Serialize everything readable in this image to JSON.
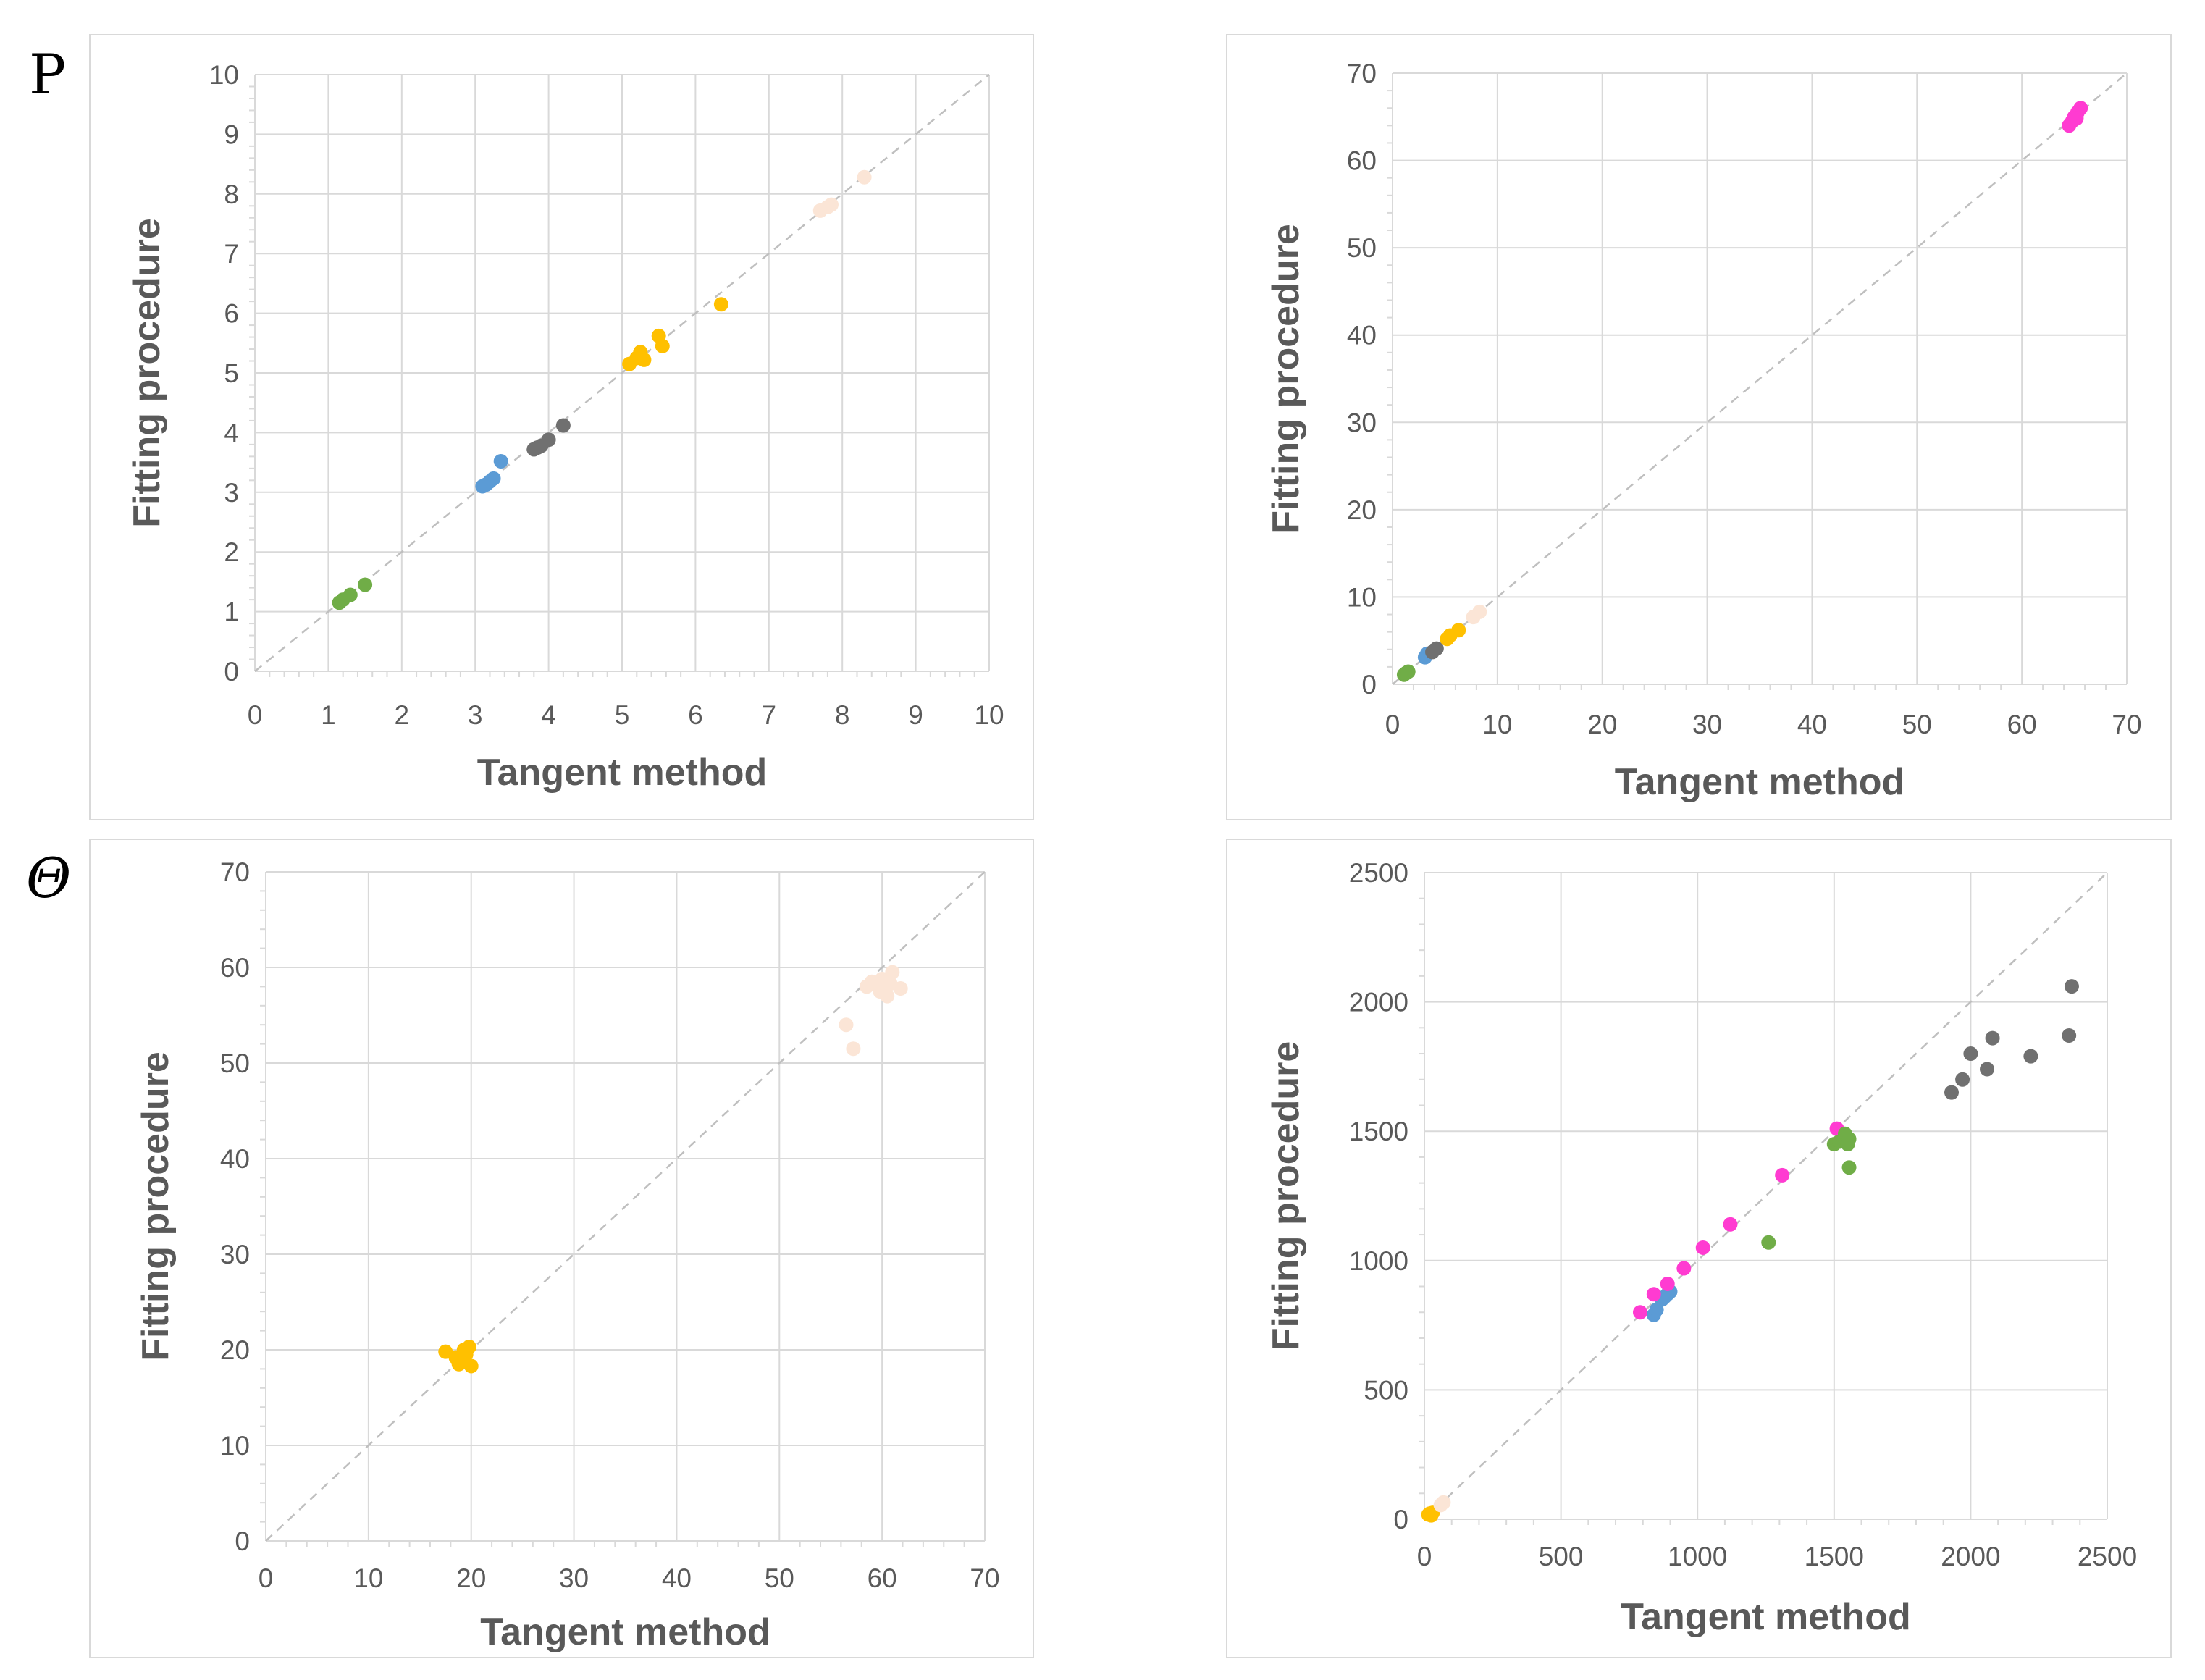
{
  "row_labels": {
    "top": "P",
    "bottom": "Θ"
  },
  "colors": {
    "green": "#70ad47",
    "blue": "#5b9bd5",
    "gray": "#707070",
    "orange": "#ffc000",
    "peach": "#fbe5d6",
    "pink": "#ff3bd1",
    "grid": "#d9d9d9",
    "diagonal": "#bfbfbf"
  },
  "chart_data": [
    {
      "id": "chart-1",
      "type": "scatter",
      "xlabel": "Tangent method",
      "ylabel": "Fitting procedure",
      "xlim": [
        0,
        10
      ],
      "ylim": [
        0,
        10
      ],
      "xticks": [
        0,
        1,
        2,
        3,
        4,
        5,
        6,
        7,
        8,
        9,
        10
      ],
      "yticks": [
        0,
        1,
        2,
        3,
        4,
        5,
        6,
        7,
        8,
        9,
        10
      ],
      "xtick_labels": [
        "0",
        "1",
        "2",
        "3",
        "4",
        "5",
        "6",
        "7",
        "8",
        "9",
        "10"
      ],
      "ytick_labels": [
        "0",
        "1",
        "2",
        "3",
        "4",
        "5",
        "6",
        "7",
        "8",
        "9",
        "10"
      ],
      "diagonal": true,
      "series": [
        {
          "color": "green",
          "points": [
            [
              1.15,
              1.15
            ],
            [
              1.2,
              1.2
            ],
            [
              1.3,
              1.28
            ],
            [
              1.5,
              1.45
            ]
          ]
        },
        {
          "color": "blue",
          "points": [
            [
              3.1,
              3.1
            ],
            [
              3.15,
              3.13
            ],
            [
              3.2,
              3.18
            ],
            [
              3.25,
              3.23
            ],
            [
              3.35,
              3.52
            ]
          ]
        },
        {
          "color": "gray",
          "points": [
            [
              3.8,
              3.72
            ],
            [
              3.85,
              3.75
            ],
            [
              3.9,
              3.78
            ],
            [
              4.0,
              3.88
            ],
            [
              4.2,
              4.12
            ]
          ]
        },
        {
          "color": "orange",
          "points": [
            [
              5.1,
              5.15
            ],
            [
              5.2,
              5.25
            ],
            [
              5.25,
              5.35
            ],
            [
              5.3,
              5.22
            ],
            [
              5.5,
              5.62
            ],
            [
              5.55,
              5.45
            ],
            [
              6.35,
              6.15
            ]
          ]
        },
        {
          "color": "peach",
          "points": [
            [
              7.7,
              7.72
            ],
            [
              7.8,
              7.78
            ],
            [
              7.85,
              7.82
            ],
            [
              8.3,
              8.28
            ]
          ]
        }
      ]
    },
    {
      "id": "chart-2",
      "type": "scatter",
      "xlabel": "Tangent method",
      "ylabel": "Fitting procedure",
      "xlim": [
        0,
        70
      ],
      "ylim": [
        0,
        70
      ],
      "xticks": [
        0,
        10,
        20,
        30,
        40,
        50,
        60,
        70
      ],
      "yticks": [
        0,
        10,
        20,
        30,
        40,
        50,
        60,
        70
      ],
      "xtick_labels": [
        "0",
        "10",
        "20",
        "30",
        "40",
        "50",
        "60",
        "70"
      ],
      "ytick_labels": [
        "0",
        "10",
        "20",
        "30",
        "40",
        "50",
        "60",
        "70"
      ],
      "diagonal": true,
      "series": [
        {
          "color": "green",
          "points": [
            [
              1.1,
              1.1
            ],
            [
              1.3,
              1.3
            ],
            [
              1.5,
              1.45
            ]
          ]
        },
        {
          "color": "blue",
          "points": [
            [
              3.1,
              3.1
            ],
            [
              3.3,
              3.5
            ]
          ]
        },
        {
          "color": "gray",
          "points": [
            [
              3.8,
              3.7
            ],
            [
              4.2,
              4.1
            ]
          ]
        },
        {
          "color": "orange",
          "points": [
            [
              5.2,
              5.2
            ],
            [
              5.5,
              5.6
            ],
            [
              6.3,
              6.2
            ]
          ]
        },
        {
          "color": "peach",
          "points": [
            [
              7.7,
              7.7
            ],
            [
              8.3,
              8.3
            ]
          ]
        },
        {
          "color": "pink",
          "points": [
            [
              64.5,
              64.0
            ],
            [
              64.8,
              64.5
            ],
            [
              65.0,
              65.0
            ],
            [
              65.3,
              65.5
            ],
            [
              65.6,
              66.0
            ],
            [
              65.2,
              64.8
            ]
          ]
        }
      ]
    },
    {
      "id": "chart-3",
      "type": "scatter",
      "xlabel": "Tangent method",
      "ylabel": "Fitting procedure",
      "xlim": [
        0,
        70
      ],
      "ylim": [
        0,
        70
      ],
      "xticks": [
        0,
        10,
        20,
        30,
        40,
        50,
        60,
        70
      ],
      "yticks": [
        0,
        10,
        20,
        30,
        40,
        50,
        60,
        70
      ],
      "xtick_labels": [
        "0",
        "10",
        "20",
        "30",
        "40",
        "50",
        "60",
        "70"
      ],
      "ytick_labels": [
        "0",
        "10",
        "20",
        "30",
        "40",
        "50",
        "60",
        "70"
      ],
      "diagonal": true,
      "series": [
        {
          "color": "orange",
          "points": [
            [
              17.5,
              19.8
            ],
            [
              18.5,
              19.2
            ],
            [
              19.0,
              18.8
            ],
            [
              19.3,
              20.0
            ],
            [
              19.5,
              19.5
            ],
            [
              19.8,
              20.3
            ],
            [
              20.0,
              18.3
            ],
            [
              18.8,
              18.5
            ]
          ]
        },
        {
          "color": "peach",
          "points": [
            [
              56.5,
              54.0
            ],
            [
              57.2,
              51.5
            ],
            [
              58.5,
              58.0
            ],
            [
              59.0,
              58.5
            ],
            [
              60.0,
              58.8
            ],
            [
              60.5,
              57.0
            ],
            [
              61.0,
              59.5
            ],
            [
              61.8,
              57.8
            ],
            [
              60.8,
              58.3
            ],
            [
              59.8,
              57.5
            ]
          ]
        }
      ]
    },
    {
      "id": "chart-4",
      "type": "scatter",
      "xlabel": "Tangent method",
      "ylabel": "Fitting procedure",
      "xlim": [
        0,
        2500
      ],
      "ylim": [
        0,
        2500
      ],
      "xticks": [
        0,
        500,
        1000,
        1500,
        2000,
        2500
      ],
      "yticks": [
        0,
        500,
        1000,
        1500,
        2000,
        2500
      ],
      "xtick_labels": [
        "0",
        "500",
        "1000",
        "1500",
        "2000",
        "2500"
      ],
      "ytick_labels": [
        "0",
        "500",
        "1000",
        "1500",
        "2000",
        "2500"
      ],
      "diagonal": true,
      "series": [
        {
          "color": "orange",
          "points": [
            [
              15,
              18
            ],
            [
              20,
              22
            ],
            [
              25,
              15
            ],
            [
              30,
              25
            ]
          ]
        },
        {
          "color": "peach",
          "points": [
            [
              60,
              55
            ],
            [
              70,
              65
            ]
          ]
        },
        {
          "color": "blue",
          "points": [
            [
              840,
              790
            ],
            [
              850,
              810
            ],
            [
              870,
              850
            ],
            [
              880,
              860
            ],
            [
              890,
              870
            ],
            [
              900,
              880
            ]
          ]
        },
        {
          "color": "pink",
          "points": [
            [
              790,
              800
            ],
            [
              840,
              870
            ],
            [
              890,
              910
            ],
            [
              950,
              970
            ],
            [
              1020,
              1050
            ],
            [
              1120,
              1140
            ],
            [
              1310,
              1330
            ],
            [
              1510,
              1510
            ]
          ]
        },
        {
          "color": "green",
          "points": [
            [
              1260,
              1070
            ],
            [
              1500,
              1450
            ],
            [
              1520,
              1460
            ],
            [
              1540,
              1490
            ],
            [
              1550,
              1450
            ],
            [
              1555,
              1470
            ],
            [
              1555,
              1360
            ]
          ]
        },
        {
          "color": "gray",
          "points": [
            [
              1930,
              1650
            ],
            [
              1970,
              1700
            ],
            [
              2000,
              1800
            ],
            [
              2060,
              1740
            ],
            [
              2080,
              1860
            ],
            [
              2220,
              1790
            ],
            [
              2360,
              1870
            ],
            [
              2370,
              2060
            ]
          ]
        }
      ]
    }
  ]
}
